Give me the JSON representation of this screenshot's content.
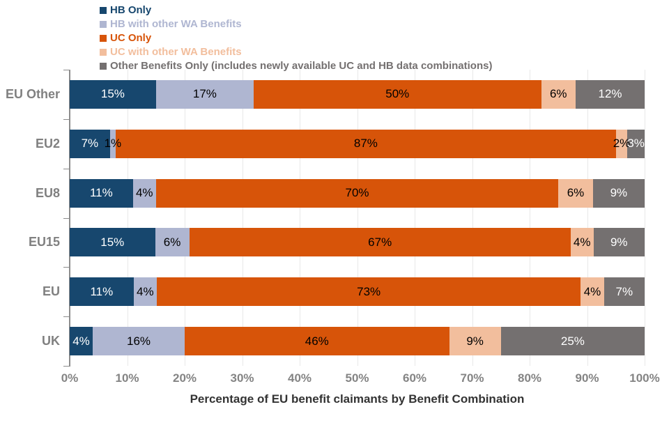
{
  "axis": {
    "x_title": "Percentage of EU benefit claimants by Benefit Combination"
  },
  "chart_data": {
    "type": "bar",
    "orientation": "horizontal",
    "stacked": true,
    "grid": true,
    "legend_position": "top",
    "xlim": [
      0,
      100
    ],
    "value_suffix": "%",
    "xlabel": "Percentage of EU benefit claimants by Benefit Combination",
    "x_ticks": [
      "0%",
      "10%",
      "20%",
      "30%",
      "40%",
      "50%",
      "60%",
      "70%",
      "80%",
      "90%",
      "100%"
    ],
    "categories": [
      "EU Other",
      "EU2",
      "EU8",
      "EU15",
      "EU",
      "UK"
    ],
    "series": [
      {
        "name": "HB Only",
        "color": "#17476E",
        "label_color": "#ffffff",
        "values": [
          15,
          7,
          11,
          15,
          11,
          4
        ]
      },
      {
        "name": "HB with other WA Benefits",
        "color": "#AFB6D1",
        "label_color": "#000000",
        "values": [
          17,
          1,
          4,
          6,
          4,
          16
        ]
      },
      {
        "name": "UC Only",
        "color": "#D75409",
        "label_color": "#000000",
        "values": [
          50,
          87,
          70,
          67,
          73,
          46
        ]
      },
      {
        "name": "UC with other WA Benefits",
        "color": "#F2BE9D",
        "label_color": "#000000",
        "values": [
          6,
          2,
          6,
          4,
          4,
          9
        ]
      },
      {
        "name": "Other Benefits Only (includes newly available UC and HB data combinations)",
        "color": "#747070",
        "label_color": "#ffffff",
        "values": [
          12,
          3,
          9,
          9,
          7,
          25
        ]
      }
    ]
  }
}
